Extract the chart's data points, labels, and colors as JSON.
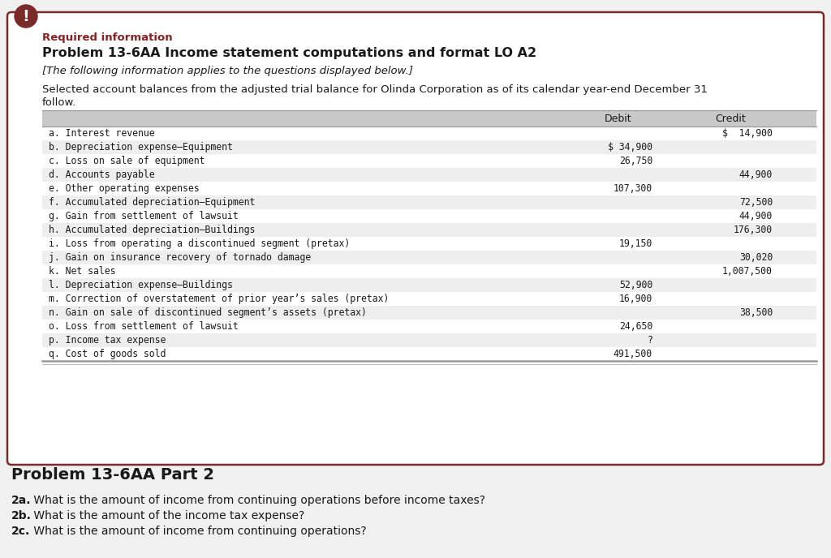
{
  "bg_color": "#f0f0f0",
  "card_bg": "#ffffff",
  "card_border": "#7b2a2a",
  "icon_bg": "#7b2a2a",
  "required_info_color": "#8b2020",
  "title_text": "Problem 13-6AA Income statement computations and format LO A2",
  "subtitle_text": "[The following information applies to the questions displayed below.]",
  "body_line1": "Selected account balances from the adjusted trial balance for Olinda Corporation as of its calendar year-end December 31",
  "body_line2": "follow.",
  "table_header_bg": "#c8c8c8",
  "table_row_alt_bg": "#eeeeee",
  "table_row_bg": "#ffffff",
  "table_rows": [
    {
      "label": "a. Interest revenue",
      "debit": "",
      "credit": "$  14,900"
    },
    {
      "label": "b. Depreciation expense–Equipment",
      "debit": "$ 34,900",
      "credit": ""
    },
    {
      "label": "c. Loss on sale of equipment",
      "debit": "26,750",
      "credit": ""
    },
    {
      "label": "d. Accounts payable",
      "debit": "",
      "credit": "44,900"
    },
    {
      "label": "e. Other operating expenses",
      "debit": "107,300",
      "credit": ""
    },
    {
      "label": "f. Accumulated depreciation–Equipment",
      "debit": "",
      "credit": "72,500"
    },
    {
      "label": "g. Gain from settlement of lawsuit",
      "debit": "",
      "credit": "44,900"
    },
    {
      "label": "h. Accumulated depreciation–Buildings",
      "debit": "",
      "credit": "176,300"
    },
    {
      "label": "i. Loss from operating a discontinued segment (pretax)",
      "debit": "19,150",
      "credit": ""
    },
    {
      "label": "j. Gain on insurance recovery of tornado damage",
      "debit": "",
      "credit": "30,020"
    },
    {
      "label": "k. Net sales",
      "debit": "",
      "credit": "1,007,500"
    },
    {
      "label": "l. Depreciation expense–Buildings",
      "debit": "52,900",
      "credit": ""
    },
    {
      "label": "m. Correction of overstatement of prior year’s sales (pretax)",
      "debit": "16,900",
      "credit": ""
    },
    {
      "label": "n. Gain on sale of discontinued segment’s assets (pretax)",
      "debit": "",
      "credit": "38,500"
    },
    {
      "label": "o. Loss from settlement of lawsuit",
      "debit": "24,650",
      "credit": ""
    },
    {
      "label": "p. Income tax expense",
      "debit": "?",
      "credit": ""
    },
    {
      "label": "q. Cost of goods sold",
      "debit": "491,500",
      "credit": ""
    }
  ],
  "part2_title": "Problem 13-6AA Part 2",
  "questions": [
    {
      "bold": "2a.",
      "normal": " What is the amount of income from continuing operations before income taxes?"
    },
    {
      "bold": "2b.",
      "normal": " What is the amount of the income tax expense?"
    },
    {
      "bold": "2c.",
      "normal": " What is the amount of income from continuing operations?"
    }
  ]
}
